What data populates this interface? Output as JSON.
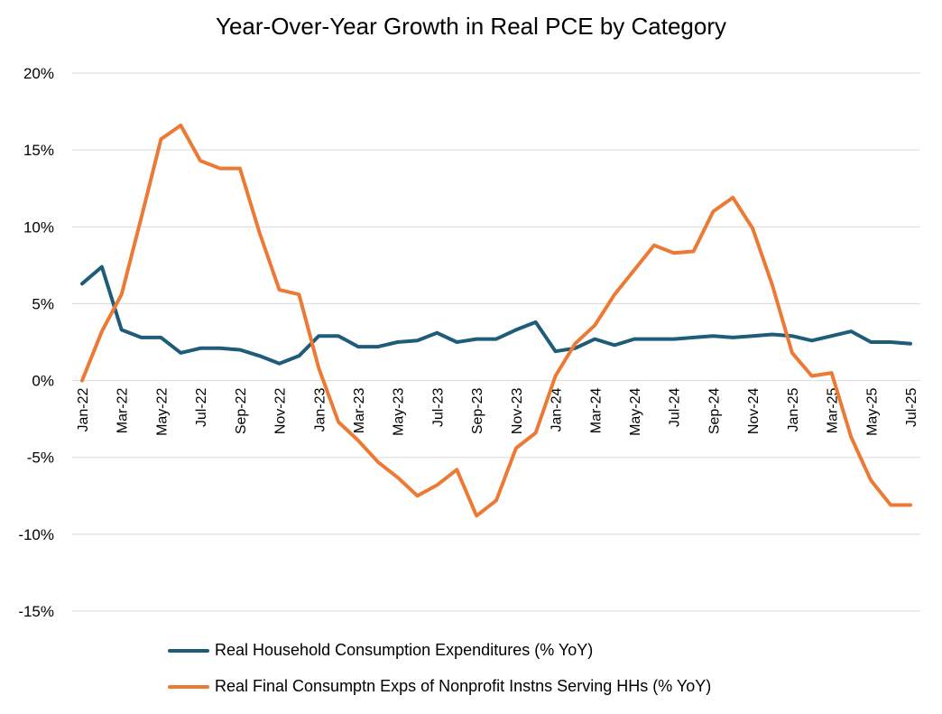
{
  "chart_data": {
    "type": "line",
    "title": "Year-Over-Year Growth in Real PCE by Category",
    "xlabel": "",
    "ylabel": "",
    "ylim": [
      -15,
      20
    ],
    "y_ticks": [
      20,
      15,
      10,
      5,
      0,
      -5,
      -10,
      -15
    ],
    "y_tick_labels": [
      "20%",
      "15%",
      "10%",
      "5%",
      "0%",
      "-5%",
      "-10%",
      "-15%"
    ],
    "grid": true,
    "legend_position": "bottom",
    "categories": [
      "Jan-22",
      "Feb-22",
      "Mar-22",
      "Apr-22",
      "May-22",
      "Jun-22",
      "Jul-22",
      "Aug-22",
      "Sep-22",
      "Oct-22",
      "Nov-22",
      "Dec-22",
      "Jan-23",
      "Feb-23",
      "Mar-23",
      "Apr-23",
      "May-23",
      "Jun-23",
      "Jul-23",
      "Aug-23",
      "Sep-23",
      "Oct-23",
      "Nov-23",
      "Dec-23",
      "Jan-24",
      "Feb-24",
      "Mar-24",
      "Apr-24",
      "May-24",
      "Jun-24",
      "Jul-24",
      "Aug-24",
      "Sep-24",
      "Oct-24",
      "Nov-24",
      "Dec-24",
      "Jan-25",
      "Feb-25",
      "Mar-25",
      "Apr-25",
      "May-25",
      "Jun-25",
      "Jul-25"
    ],
    "x_tick_labels": [
      "Jan-22",
      "Mar-22",
      "May-22",
      "Jul-22",
      "Sep-22",
      "Nov-22",
      "Jan-23",
      "Mar-23",
      "May-23",
      "Jul-23",
      "Sep-23",
      "Nov-23",
      "Jan-24",
      "Mar-24",
      "May-24",
      "Jul-24",
      "Sep-24",
      "Nov-24",
      "Jan-25",
      "Mar-25",
      "May-25",
      "Jul-25"
    ],
    "series": [
      {
        "name": "Real Household Consumption Expenditures (% YoY)",
        "color": "#1f5c7a",
        "values": [
          6.3,
          7.4,
          3.3,
          2.8,
          2.8,
          1.8,
          2.1,
          2.1,
          2.0,
          1.6,
          1.1,
          1.6,
          2.9,
          2.9,
          2.2,
          2.2,
          2.5,
          2.6,
          3.1,
          2.5,
          2.7,
          2.7,
          3.3,
          3.8,
          1.9,
          2.1,
          2.7,
          2.3,
          2.7,
          2.7,
          2.7,
          2.8,
          2.9,
          2.8,
          2.9,
          3.0,
          2.9,
          2.6,
          2.9,
          3.2,
          2.5,
          2.5,
          2.4
        ]
      },
      {
        "name": "Real Final Consumptn Exps of Nonprofit Instns Serving HHs (% YoY)",
        "color": "#ec7a35",
        "values": [
          0.0,
          3.2,
          5.6,
          10.6,
          15.7,
          16.6,
          14.3,
          13.8,
          13.8,
          9.6,
          5.9,
          5.6,
          0.8,
          -2.7,
          -3.9,
          -5.3,
          -6.3,
          -7.5,
          -6.8,
          -5.8,
          -8.8,
          -7.8,
          -4.4,
          -3.4,
          0.3,
          2.4,
          3.6,
          5.6,
          7.2,
          8.8,
          8.3,
          8.4,
          11.0,
          11.9,
          9.9,
          6.2,
          1.8,
          0.3,
          0.5,
          -3.7,
          -6.5,
          -8.1,
          -8.1
        ]
      }
    ]
  }
}
